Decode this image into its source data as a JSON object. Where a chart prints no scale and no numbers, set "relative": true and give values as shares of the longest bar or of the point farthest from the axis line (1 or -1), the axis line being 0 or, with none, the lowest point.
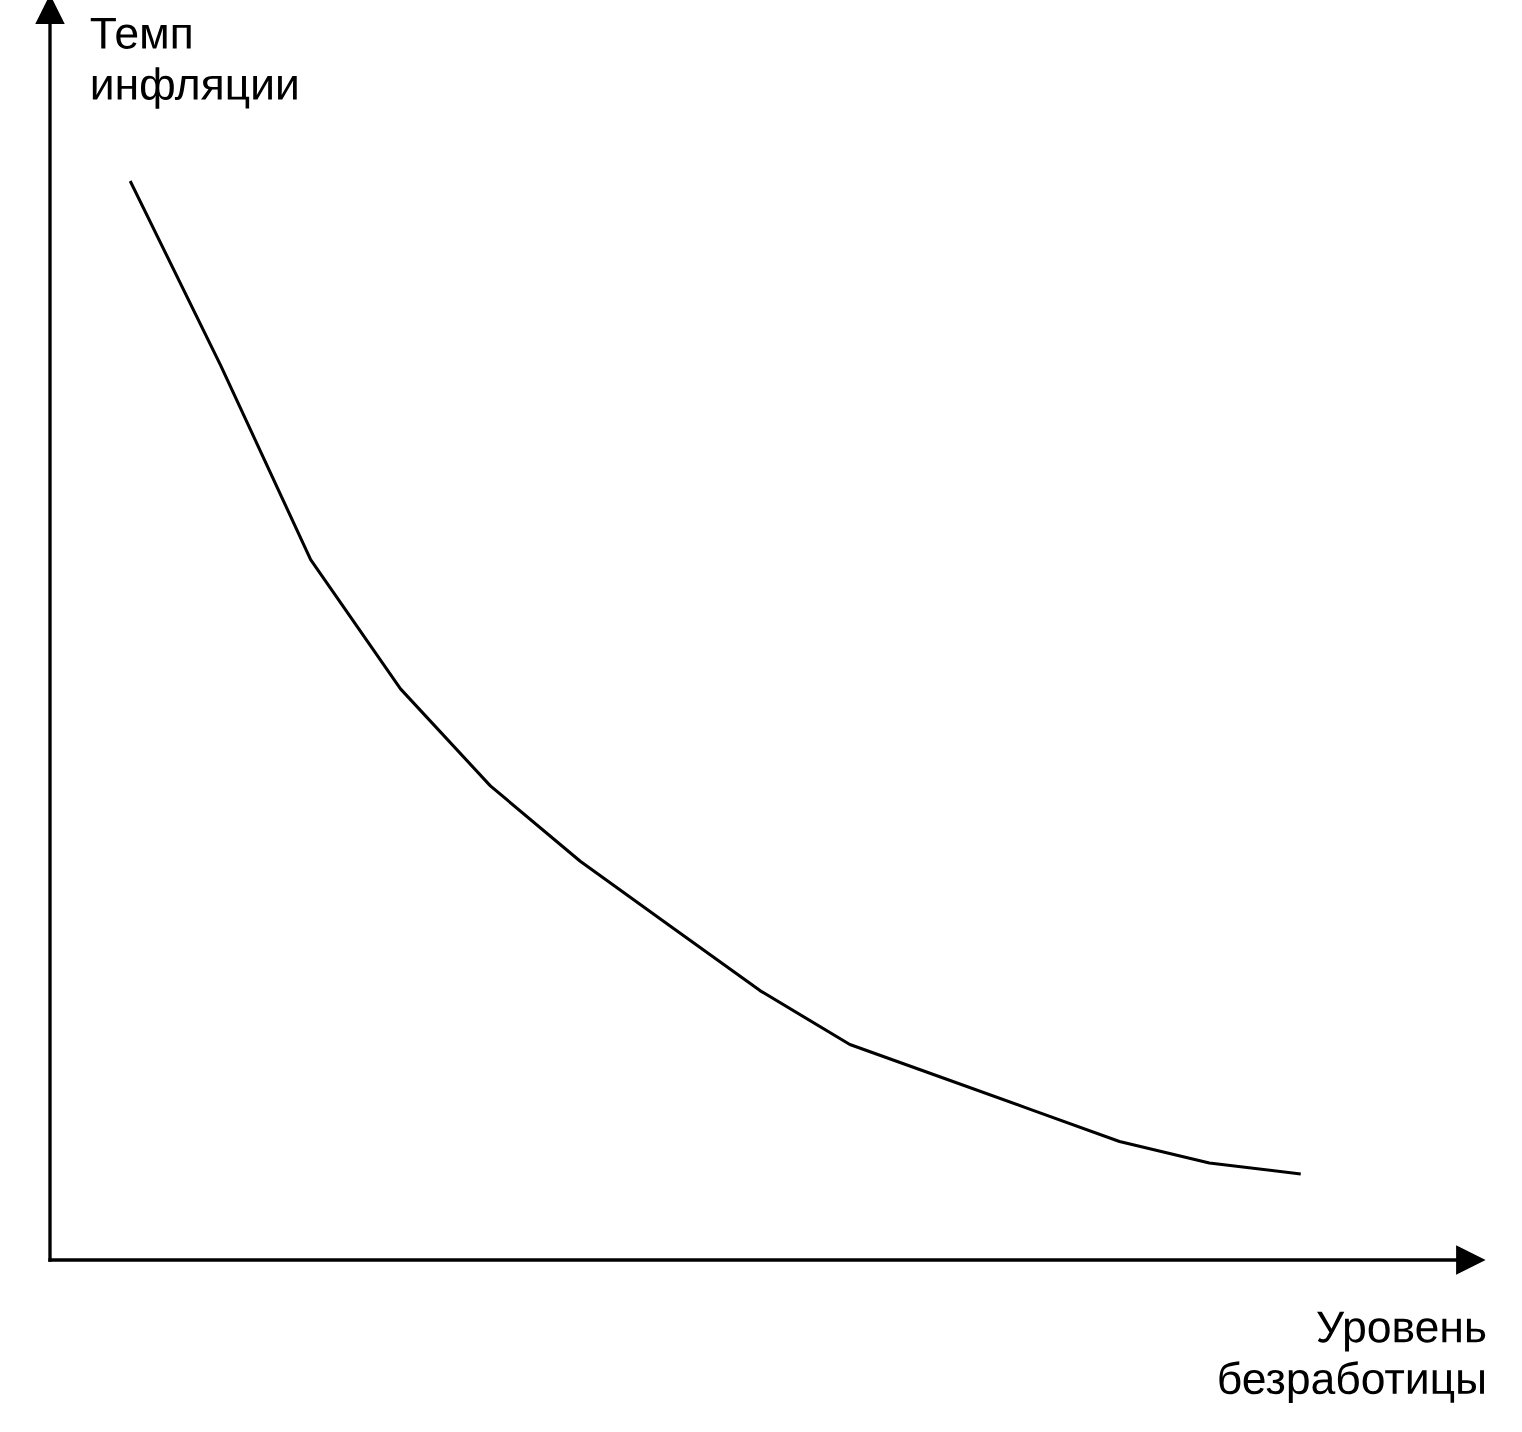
{
  "chart_data": {
    "type": "line",
    "relative": true,
    "xlabel": "Уровень\nбезработицы",
    "ylabel": "Темп\nинфляции",
    "categories": [
      null,
      null,
      null,
      null,
      null,
      null,
      null,
      null,
      null,
      null,
      null,
      null,
      null,
      null
    ],
    "series": [
      {
        "color": "#000000",
        "values": [
          1,
          0.83,
          0.65,
          0.53,
          0.44,
          0.37,
          0.31,
          0.25,
          0.2,
          0.17,
          0.14,
          0.11,
          0.09,
          0.08
        ]
      }
    ],
    "grid": false,
    "marker": "none",
    "line_style": "solid"
  }
}
